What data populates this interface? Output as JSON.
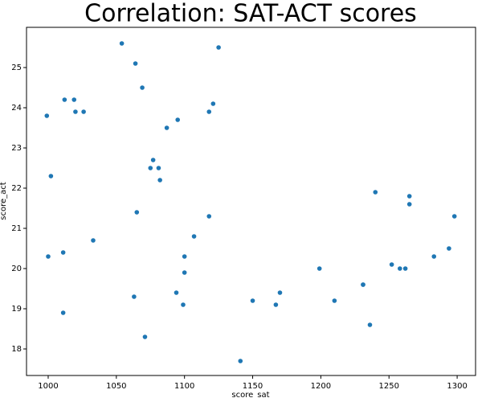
{
  "chart_data": {
    "type": "scatter",
    "title": "Correlation: SAT-ACT scores",
    "x_label": "score_sat",
    "y_label": "score_act",
    "color": "#1f77b4",
    "x": [
      1054,
      1064,
      1125,
      1069,
      1012,
      1019,
      1020,
      1026,
      999,
      1121,
      1118,
      1095,
      1087,
      1077,
      1075,
      1081,
      1082,
      1002,
      1240,
      1265,
      1265,
      1065,
      1118,
      1298,
      1033,
      1107,
      1000,
      1011,
      1100,
      1100,
      1199,
      1231,
      1252,
      1258,
      1262,
      1283,
      1294,
      1231,
      1094,
      1170,
      1063,
      1150,
      1210,
      1099,
      1167,
      1011,
      1236,
      1071,
      1141
    ],
    "y": [
      25.6,
      25.1,
      25.5,
      24.5,
      24.2,
      24.2,
      23.9,
      23.9,
      23.8,
      24.1,
      23.9,
      23.7,
      23.5,
      22.7,
      22.5,
      22.5,
      22.2,
      22.3,
      21.9,
      21.8,
      21.6,
      21.4,
      21.3,
      21.3,
      20.7,
      20.8,
      20.3,
      20.4,
      20.3,
      19.9,
      20.0,
      19.6,
      20.1,
      20.0,
      20.0,
      20.3,
      20.5,
      19.6,
      19.4,
      19.4,
      19.3,
      19.2,
      19.2,
      19.1,
      19.1,
      18.9,
      18.6,
      18.3,
      17.7
    ],
    "xlim": [
      984.1,
      1313.5
    ],
    "ylim": [
      17.34,
      26.0
    ],
    "xticks": [
      1000,
      1050,
      1100,
      1150,
      1200,
      1250,
      1300
    ],
    "yticks": [
      18,
      19,
      20,
      21,
      22,
      23,
      24,
      25
    ]
  }
}
